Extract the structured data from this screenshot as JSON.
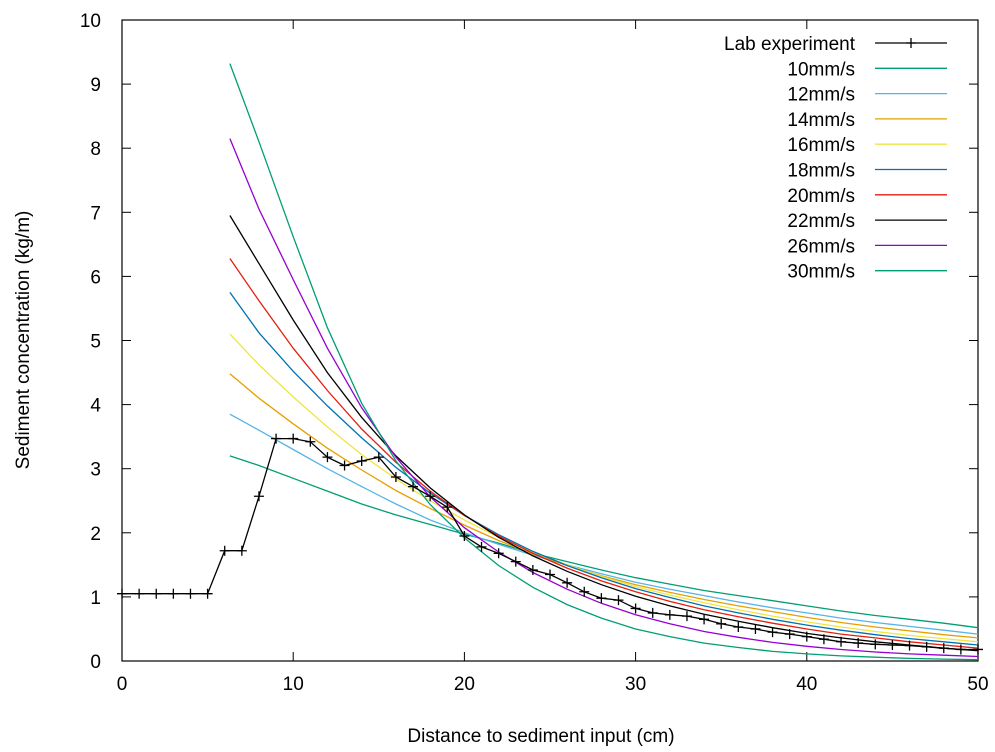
{
  "chart_data": {
    "type": "line",
    "title": "",
    "xlabel": "Distance to sediment input (cm)",
    "ylabel": "Sediment concentration (kg/m)",
    "xlim": [
      0,
      50
    ],
    "ylim": [
      0,
      10
    ],
    "xticks": [
      0,
      10,
      20,
      30,
      40,
      50
    ],
    "yticks": [
      0,
      1,
      2,
      3,
      4,
      5,
      6,
      7,
      8,
      9,
      10
    ],
    "grid": false,
    "legend_position": "top-right",
    "series": [
      {
        "name": "Lab experiment",
        "color": "#000000",
        "marker": "plus",
        "x": [
          0,
          1,
          2,
          3,
          4,
          5,
          6,
          7,
          8,
          9,
          10,
          11,
          12,
          13,
          14,
          15,
          16,
          17,
          18,
          19,
          20,
          21,
          22,
          23,
          24,
          25,
          26,
          27,
          28,
          29,
          30,
          31,
          32,
          33,
          34,
          35,
          36,
          37,
          38,
          39,
          40,
          41,
          42,
          43,
          44,
          45,
          46,
          47,
          48,
          49,
          50
        ],
        "y": [
          1.05,
          1.05,
          1.05,
          1.05,
          1.05,
          1.05,
          1.72,
          1.72,
          2.57,
          3.47,
          3.47,
          3.42,
          3.18,
          3.05,
          3.12,
          3.18,
          2.87,
          2.72,
          2.57,
          2.4,
          1.95,
          1.78,
          1.68,
          1.55,
          1.42,
          1.35,
          1.22,
          1.08,
          0.98,
          0.95,
          0.82,
          0.75,
          0.72,
          0.7,
          0.65,
          0.58,
          0.53,
          0.5,
          0.45,
          0.42,
          0.38,
          0.34,
          0.3,
          0.28,
          0.26,
          0.25,
          0.24,
          0.22,
          0.2,
          0.18,
          0.18
        ]
      },
      {
        "name": "10mm/s",
        "color": "#009e73",
        "x": [
          6.3,
          8,
          10,
          12,
          14,
          16,
          18,
          20,
          22,
          24,
          26,
          28,
          30,
          32,
          34,
          36,
          38,
          40,
          42,
          44,
          46,
          48,
          50
        ],
        "y": [
          3.2,
          3.05,
          2.85,
          2.65,
          2.45,
          2.28,
          2.13,
          1.98,
          1.84,
          1.68,
          1.55,
          1.42,
          1.3,
          1.2,
          1.1,
          1.02,
          0.94,
          0.86,
          0.78,
          0.71,
          0.65,
          0.59,
          0.52
        ]
      },
      {
        "name": "12mm/s",
        "color": "#56b4e9",
        "x": [
          6.3,
          8,
          10,
          12,
          14,
          16,
          18,
          20,
          22,
          24,
          26,
          28,
          30,
          32,
          34,
          36,
          38,
          40,
          42,
          44,
          46,
          48,
          50
        ],
        "y": [
          3.85,
          3.6,
          3.3,
          3.0,
          2.72,
          2.45,
          2.2,
          2.0,
          1.82,
          1.65,
          1.5,
          1.36,
          1.23,
          1.12,
          1.02,
          0.92,
          0.83,
          0.75,
          0.67,
          0.6,
          0.54,
          0.48,
          0.42
        ]
      },
      {
        "name": "14mm/s",
        "color": "#e69f00",
        "x": [
          6.3,
          8,
          10,
          12,
          14,
          16,
          18,
          20,
          22,
          24,
          26,
          28,
          30,
          32,
          34,
          36,
          38,
          40,
          42,
          44,
          46,
          48,
          50
        ],
        "y": [
          4.48,
          4.1,
          3.7,
          3.32,
          2.98,
          2.66,
          2.38,
          2.12,
          1.88,
          1.67,
          1.49,
          1.33,
          1.19,
          1.07,
          0.96,
          0.86,
          0.77,
          0.68,
          0.6,
          0.53,
          0.47,
          0.41,
          0.36
        ]
      },
      {
        "name": "16mm/s",
        "color": "#f0e442",
        "x": [
          6.3,
          8,
          10,
          12,
          14,
          16,
          18,
          20,
          22,
          24,
          26,
          28,
          30,
          32,
          34,
          36,
          38,
          40,
          42,
          44,
          46,
          48,
          50
        ],
        "y": [
          5.1,
          4.62,
          4.12,
          3.65,
          3.22,
          2.84,
          2.5,
          2.2,
          1.93,
          1.7,
          1.5,
          1.32,
          1.16,
          1.03,
          0.91,
          0.8,
          0.7,
          0.61,
          0.53,
          0.46,
          0.4,
          0.35,
          0.3
        ]
      },
      {
        "name": "18mm/s",
        "color": "#0072b2",
        "x": [
          6.3,
          8,
          10,
          12,
          14,
          16,
          18,
          20,
          22,
          24,
          26,
          28,
          30,
          32,
          34,
          36,
          38,
          40,
          42,
          44,
          46,
          48,
          50
        ],
        "y": [
          5.75,
          5.12,
          4.52,
          3.98,
          3.48,
          3.02,
          2.62,
          2.27,
          1.97,
          1.71,
          1.49,
          1.3,
          1.13,
          0.99,
          0.86,
          0.75,
          0.65,
          0.56,
          0.48,
          0.41,
          0.35,
          0.3,
          0.25
        ]
      },
      {
        "name": "20mm/s",
        "color": "#e51e10",
        "x": [
          6.3,
          8,
          10,
          12,
          14,
          16,
          18,
          20,
          22,
          24,
          26,
          28,
          30,
          32,
          34,
          36,
          38,
          40,
          42,
          44,
          46,
          48,
          50
        ],
        "y": [
          6.28,
          5.62,
          4.88,
          4.22,
          3.62,
          3.1,
          2.65,
          2.27,
          1.95,
          1.68,
          1.45,
          1.25,
          1.08,
          0.93,
          0.8,
          0.69,
          0.59,
          0.5,
          0.42,
          0.36,
          0.3,
          0.25,
          0.2
        ]
      },
      {
        "name": "22mm/s",
        "color": "#000000",
        "x": [
          6.3,
          8,
          10,
          12,
          14,
          16,
          18,
          20,
          22,
          24,
          26,
          28,
          30,
          32,
          34,
          36,
          38,
          40,
          42,
          44,
          46,
          48,
          50
        ],
        "y": [
          6.95,
          6.2,
          5.32,
          4.5,
          3.8,
          3.2,
          2.7,
          2.28,
          1.93,
          1.64,
          1.4,
          1.19,
          1.01,
          0.86,
          0.73,
          0.62,
          0.52,
          0.43,
          0.36,
          0.3,
          0.25,
          0.2,
          0.16
        ]
      },
      {
        "name": "26mm/s",
        "color": "#9400d3",
        "x": [
          6.3,
          8,
          10,
          12,
          14,
          16,
          18,
          20,
          22,
          24,
          26,
          28,
          30,
          32,
          34,
          36,
          38,
          40,
          42,
          44,
          46,
          48,
          50
        ],
        "y": [
          8.15,
          7.05,
          5.95,
          4.88,
          3.95,
          3.18,
          2.56,
          2.08,
          1.7,
          1.38,
          1.12,
          0.9,
          0.72,
          0.58,
          0.46,
          0.37,
          0.29,
          0.23,
          0.18,
          0.14,
          0.11,
          0.09,
          0.07
        ]
      },
      {
        "name": "30mm/s",
        "color": "#009e73",
        "x": [
          6.3,
          8,
          10,
          12,
          14,
          16,
          18,
          20,
          22,
          24,
          26,
          28,
          30,
          32,
          34,
          36,
          38,
          40,
          42,
          44,
          46,
          48,
          50
        ],
        "y": [
          9.32,
          8.1,
          6.62,
          5.2,
          4.02,
          3.12,
          2.44,
          1.92,
          1.49,
          1.15,
          0.88,
          0.67,
          0.5,
          0.38,
          0.28,
          0.21,
          0.15,
          0.11,
          0.08,
          0.06,
          0.04,
          0.03,
          0.02
        ]
      }
    ]
  }
}
